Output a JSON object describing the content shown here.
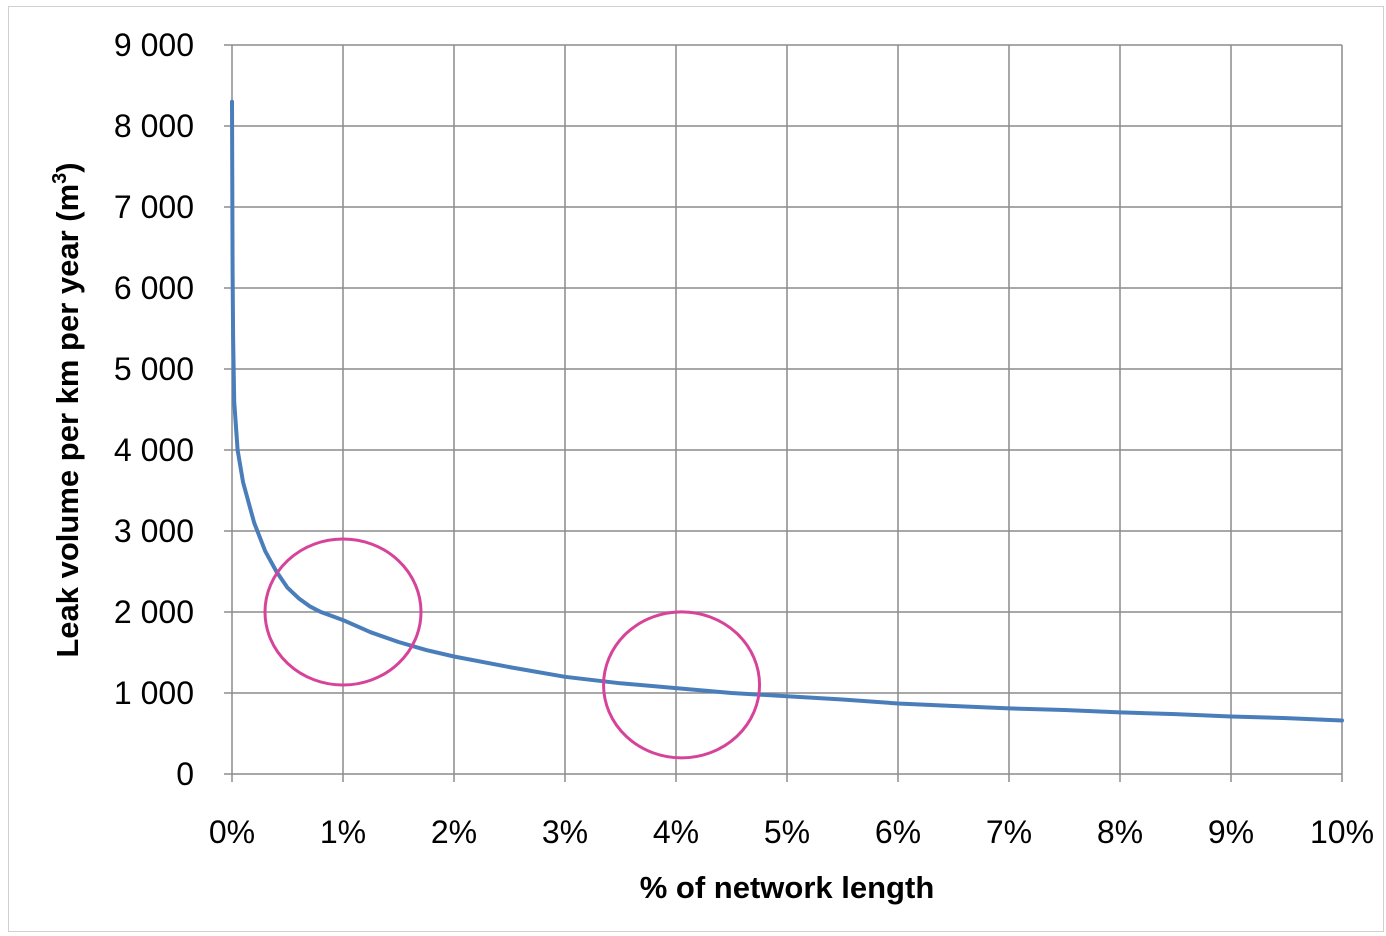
{
  "chart_data": {
    "type": "line",
    "title": "",
    "xlabel": "% of network length",
    "ylabel_main": "Leak volume per km per year (m",
    "ylabel_sup": "3",
    "ylabel_close": ")",
    "xlim": [
      0,
      10
    ],
    "ylim": [
      0,
      9000
    ],
    "x_ticks": [
      0,
      1,
      2,
      3,
      4,
      5,
      6,
      7,
      8,
      9,
      10
    ],
    "x_tick_labels": [
      "0%",
      "1%",
      "2%",
      "3%",
      "4%",
      "5%",
      "6%",
      "7%",
      "8%",
      "9%",
      "10%"
    ],
    "y_ticks": [
      0,
      1000,
      2000,
      3000,
      4000,
      5000,
      6000,
      7000,
      8000,
      9000
    ],
    "y_tick_labels": [
      "0",
      "1 000",
      "2 000",
      "3 000",
      "4 000",
      "5 000",
      "6 000",
      "7 000",
      "8 000",
      "9 000"
    ],
    "grid": true,
    "series": [
      {
        "color": "#4a7ebb",
        "points": [
          [
            0,
            8300
          ],
          [
            0.005,
            6200
          ],
          [
            0.01,
            5400
          ],
          [
            0.02,
            4600
          ],
          [
            0.05,
            4000
          ],
          [
            0.1,
            3600
          ],
          [
            0.2,
            3100
          ],
          [
            0.3,
            2750
          ],
          [
            0.4,
            2500
          ],
          [
            0.5,
            2300
          ],
          [
            0.6,
            2170
          ],
          [
            0.7,
            2070
          ],
          [
            0.8,
            2000
          ],
          [
            0.9,
            1950
          ],
          [
            1.0,
            1900
          ],
          [
            1.25,
            1750
          ],
          [
            1.5,
            1630
          ],
          [
            1.75,
            1530
          ],
          [
            2.0,
            1450
          ],
          [
            2.5,
            1320
          ],
          [
            3.0,
            1200
          ],
          [
            3.5,
            1120
          ],
          [
            4.0,
            1060
          ],
          [
            4.5,
            1000
          ],
          [
            5.0,
            960
          ],
          [
            5.5,
            920
          ],
          [
            6.0,
            870
          ],
          [
            6.5,
            840
          ],
          [
            7.0,
            810
          ],
          [
            7.5,
            790
          ],
          [
            8.0,
            760
          ],
          [
            8.5,
            740
          ],
          [
            9.0,
            710
          ],
          [
            9.5,
            690
          ],
          [
            10.0,
            660
          ]
        ]
      }
    ],
    "annotations": [
      {
        "shape": "circle",
        "x": 1.0,
        "y": 2000,
        "color": "#d6449a"
      },
      {
        "shape": "circle",
        "x": 4.05,
        "y": 1100,
        "color": "#d6449a"
      }
    ]
  }
}
